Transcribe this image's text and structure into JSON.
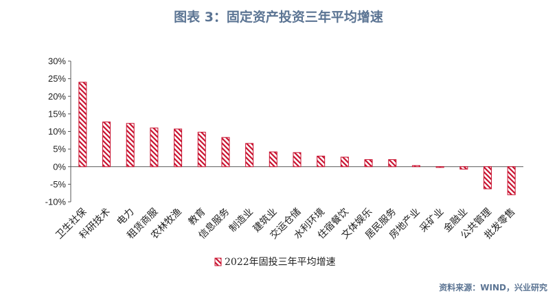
{
  "chart_data": {
    "type": "bar",
    "title": "图表 3：固定资产投资三年平均增速",
    "categories": [
      "卫生社保",
      "科研技术",
      "电力",
      "租赁商服",
      "农林牧渔",
      "教育",
      "信息服务",
      "制造业",
      "建筑业",
      "交运仓储",
      "水利环境",
      "住宿餐饮",
      "文体娱乐",
      "居民服务",
      "房地产业",
      "采矿业",
      "金融业",
      "公共管理",
      "批发零售"
    ],
    "series": [
      {
        "name": "2022年固投三年平均增速",
        "values": [
          24.0,
          12.7,
          12.3,
          11.0,
          10.7,
          9.8,
          8.3,
          6.6,
          4.2,
          4.0,
          3.0,
          2.7,
          2.0,
          2.0,
          0.3,
          -0.2,
          -0.7,
          -6.3,
          -8.0
        ]
      }
    ],
    "yticks": [
      "30%",
      "25%",
      "20%",
      "15%",
      "10%",
      "5%",
      "0%",
      "-5%",
      "-10%"
    ],
    "ylim": [
      -10,
      30
    ],
    "grid": false,
    "legend_position": "bottom-center",
    "bar_color": "#c8102e"
  },
  "source": "资料来源：WIND，兴业研究"
}
